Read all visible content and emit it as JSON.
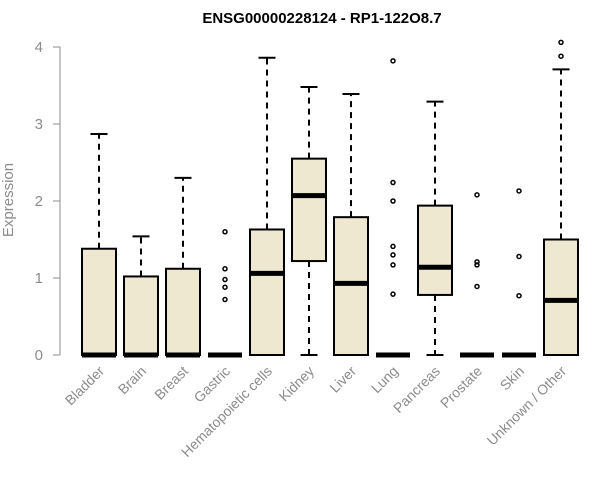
{
  "chart_data": {
    "type": "boxplot",
    "title": "ENSG00000228124 - RP1-122O8.7",
    "xlabel": "",
    "ylabel": "Expression",
    "ylim": [
      0,
      4.2
    ],
    "yticks": [
      0,
      1,
      2,
      3,
      4
    ],
    "grid": false,
    "legend": "none",
    "box_fill": "#efe8d0",
    "box_stroke": "#000000",
    "categories": [
      "Bladder",
      "Brain",
      "Breast",
      "Gastric",
      "Hematopoietic cells",
      "Kidney",
      "Liver",
      "Lung",
      "Pancreas",
      "Prostate",
      "Skin",
      "Unknown / Other"
    ],
    "boxes": [
      {
        "q1": 0,
        "median": 0,
        "q3": 1.38,
        "whisker_low": 0,
        "whisker_high": 2.87,
        "outliers": []
      },
      {
        "q1": 0,
        "median": 0,
        "q3": 1.02,
        "whisker_low": 0,
        "whisker_high": 1.54,
        "outliers": []
      },
      {
        "q1": 0,
        "median": 0,
        "q3": 1.12,
        "whisker_low": 0,
        "whisker_high": 2.3,
        "outliers": []
      },
      {
        "q1": 0,
        "median": 0,
        "q3": 0,
        "whisker_low": 0,
        "whisker_high": 0,
        "outliers": [
          1.6,
          1.12,
          0.98,
          0.88,
          0.72
        ]
      },
      {
        "q1": 0,
        "median": 1.06,
        "q3": 1.63,
        "whisker_low": 0,
        "whisker_high": 3.86,
        "outliers": []
      },
      {
        "q1": 1.22,
        "median": 2.07,
        "q3": 2.55,
        "whisker_low": 0,
        "whisker_high": 3.48,
        "outliers": []
      },
      {
        "q1": 0,
        "median": 0.93,
        "q3": 1.79,
        "whisker_low": 0,
        "whisker_high": 3.39,
        "outliers": []
      },
      {
        "q1": 0,
        "median": 0,
        "q3": 0,
        "whisker_low": 0,
        "whisker_high": 0,
        "outliers": [
          3.82,
          2.24,
          2.0,
          1.41,
          1.3,
          1.17,
          0.79
        ]
      },
      {
        "q1": 0.78,
        "median": 1.14,
        "q3": 1.94,
        "whisker_low": 0,
        "whisker_high": 3.29,
        "outliers": []
      },
      {
        "q1": 0,
        "median": 0,
        "q3": 0,
        "whisker_low": 0,
        "whisker_high": 0,
        "outliers": [
          2.08,
          1.21,
          1.17,
          0.89
        ]
      },
      {
        "q1": 0,
        "median": 0,
        "q3": 0,
        "whisker_low": 0,
        "whisker_high": 0,
        "outliers": [
          2.13,
          1.28,
          0.77
        ]
      },
      {
        "q1": 0,
        "median": 0.71,
        "q3": 1.5,
        "whisker_low": 0,
        "whisker_high": 3.71,
        "outliers": [
          4.06,
          3.88
        ]
      }
    ]
  }
}
